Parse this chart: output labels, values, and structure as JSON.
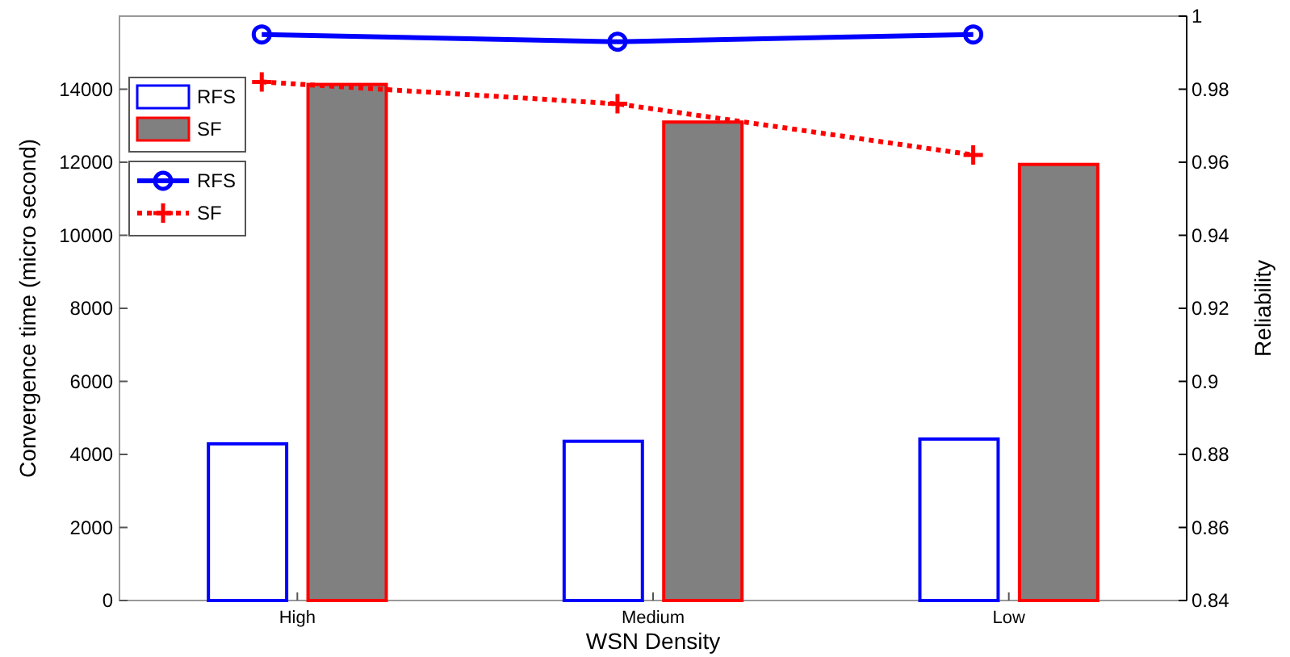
{
  "chart_data": {
    "type": "bar",
    "xlabel": "WSN Density",
    "ylabel": "Convergence time (micro second)",
    "y2label": "Reliability",
    "categories": [
      "High",
      "Medium",
      "Low"
    ],
    "series": [
      {
        "name": "RFS",
        "color": "#0000ff",
        "values": [
          4290,
          4360,
          4420
        ]
      },
      {
        "name": "SF",
        "color": "#808080",
        "values": [
          14130,
          13100,
          11940
        ]
      },
      {
        "name": "RFS",
        "type": "line",
        "axis": "y2",
        "color": "#0000ff",
        "marker": "circle",
        "line_style": "solid",
        "values": [
          0.995,
          0.993,
          0.995
        ]
      },
      {
        "name": "SF",
        "type": "line",
        "axis": "y2",
        "color": "#ff0000",
        "marker": "cross",
        "line_style": "dotted",
        "values": [
          0.982,
          0.976,
          0.962
        ]
      }
    ],
    "ylim": [
      0,
      16000
    ],
    "yticks": [
      0,
      2000,
      4000,
      6000,
      8000,
      10000,
      12000,
      14000
    ],
    "y2lim": [
      0.84,
      1
    ],
    "y2ticks": [
      0.84,
      0.86,
      0.88,
      0.9,
      0.92,
      0.94,
      0.96,
      0.98,
      1
    ],
    "legend": "top left",
    "grid": false
  }
}
